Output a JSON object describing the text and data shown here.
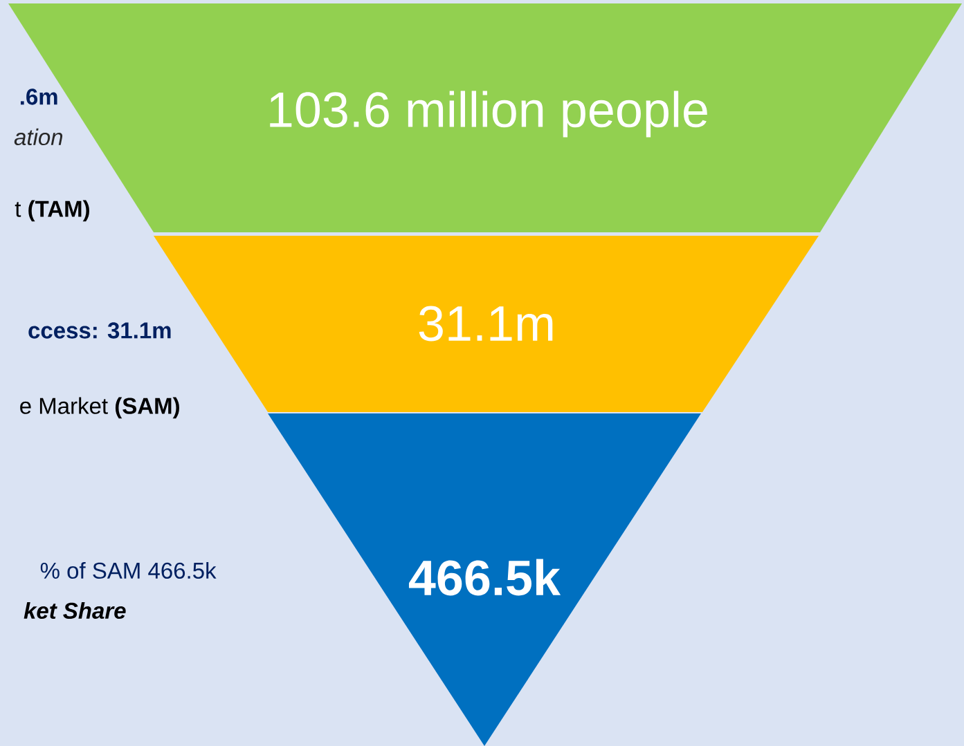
{
  "chart_data": {
    "type": "other",
    "categories": [
      null,
      null,
      null
    ],
    "values": [
      103600000,
      31100000,
      466500
    ],
    "value_labels": [
      "103.6 million people",
      "31.1m",
      "**466.5k**"
    ],
    "colors": [
      "#92d050",
      "#ffc000",
      "#0070c0"
    ],
    "annotations": [
      ".6m",
      "ation",
      "t **(TAM)**",
      "ccess: 31.1m",
      "e Market **(SAM)**",
      "% of SAM  466.5k",
      "ket Share"
    ]
  }
}
